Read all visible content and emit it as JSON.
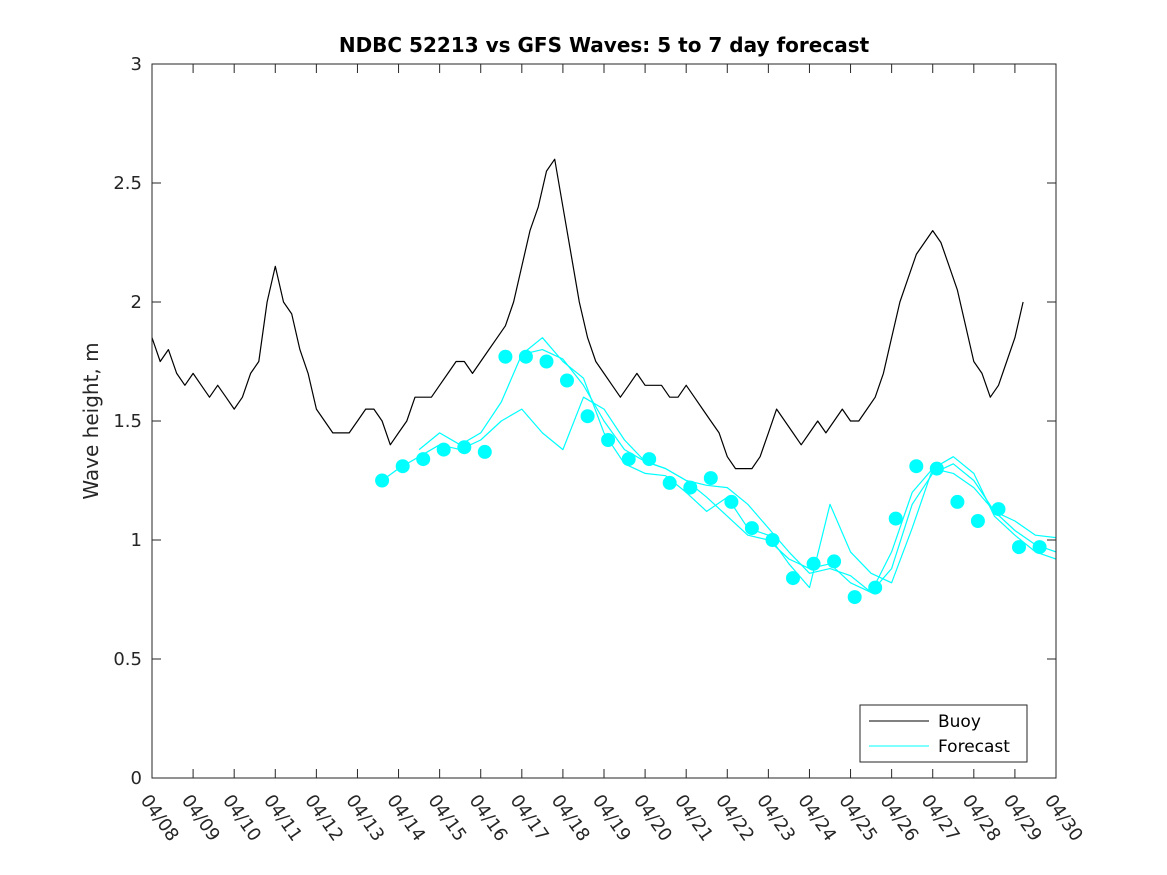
{
  "chart_data": {
    "type": "line",
    "title": "NDBC 52213 vs GFS Waves: 5 to 7 day forecast",
    "xlabel": "",
    "ylabel": "Wave height, m",
    "ylim": [
      0,
      3
    ],
    "yticks": [
      "0",
      "0.5",
      "1",
      "1.5",
      "2",
      "2.5",
      "3"
    ],
    "xlim": [
      0,
      22
    ],
    "xticks": [
      "04/08",
      "04/09",
      "04/10",
      "04/11",
      "04/12",
      "04/13",
      "04/14",
      "04/15",
      "04/16",
      "04/17",
      "04/18",
      "04/19",
      "04/20",
      "04/21",
      "04/22",
      "04/23",
      "04/24",
      "04/25",
      "04/26",
      "04/27",
      "04/28",
      "04/29",
      "04/30"
    ],
    "x_units": "days since 04/08 00:00",
    "grid": false,
    "legend": {
      "location": "bottom-right",
      "entries": [
        "Buoy",
        "Forecast"
      ]
    },
    "colors": {
      "buoy": "#000000",
      "forecast": "#00ffff"
    },
    "series": [
      {
        "name": "Buoy",
        "style": "line",
        "x": [
          0.0,
          0.2,
          0.4,
          0.6,
          0.8,
          1.0,
          1.2,
          1.4,
          1.6,
          1.8,
          2.0,
          2.2,
          2.4,
          2.6,
          2.8,
          3.0,
          3.2,
          3.4,
          3.6,
          3.8,
          4.0,
          4.2,
          4.4,
          4.6,
          4.8,
          5.0,
          5.2,
          5.4,
          5.6,
          5.8,
          6.0,
          6.2,
          6.4,
          6.6,
          6.8,
          7.0,
          7.2,
          7.4,
          7.6,
          7.8,
          8.0,
          8.2,
          8.4,
          8.6,
          8.8,
          9.0,
          9.2,
          9.4,
          9.6,
          9.8,
          10.0,
          10.2,
          10.4,
          10.6,
          10.8,
          11.0,
          11.2,
          11.4,
          11.6,
          11.8,
          12.0,
          12.2,
          12.4,
          12.6,
          12.8,
          13.0,
          13.2,
          13.4,
          13.6,
          13.8,
          14.0,
          14.2,
          14.4,
          14.6,
          14.8,
          15.0,
          15.2,
          15.4,
          15.6,
          15.8,
          16.0,
          16.2,
          16.4,
          16.6,
          16.8,
          17.0,
          17.2,
          17.4,
          17.6,
          17.8,
          18.0,
          18.2,
          18.4,
          18.6,
          18.8,
          19.0,
          19.2,
          19.4,
          19.6,
          19.8,
          20.0,
          20.2,
          20.4,
          20.6,
          20.8,
          21.0,
          21.2
        ],
        "y": [
          1.85,
          1.75,
          1.8,
          1.7,
          1.65,
          1.7,
          1.65,
          1.6,
          1.65,
          1.6,
          1.55,
          1.6,
          1.7,
          1.75,
          2.0,
          2.15,
          2.0,
          1.95,
          1.8,
          1.7,
          1.55,
          1.5,
          1.45,
          1.45,
          1.45,
          1.5,
          1.55,
          1.55,
          1.5,
          1.4,
          1.45,
          1.5,
          1.6,
          1.6,
          1.6,
          1.65,
          1.7,
          1.75,
          1.75,
          1.7,
          1.75,
          1.8,
          1.85,
          1.9,
          2.0,
          2.15,
          2.3,
          2.4,
          2.55,
          2.6,
          2.4,
          2.2,
          2.0,
          1.85,
          1.75,
          1.7,
          1.65,
          1.6,
          1.65,
          1.7,
          1.65,
          1.65,
          1.65,
          1.6,
          1.6,
          1.65,
          1.6,
          1.55,
          1.5,
          1.45,
          1.35,
          1.3,
          1.3,
          1.3,
          1.35,
          1.45,
          1.55,
          1.5,
          1.45,
          1.4,
          1.45,
          1.5,
          1.45,
          1.5,
          1.55,
          1.5,
          1.5,
          1.55,
          1.6,
          1.7,
          1.85,
          2.0,
          2.1,
          2.2,
          2.25,
          2.3,
          2.25,
          2.15,
          2.05,
          1.9,
          1.75,
          1.7,
          1.6,
          1.65,
          1.75,
          1.85,
          2.0
        ]
      },
      {
        "name": "Forecast",
        "style": "line",
        "x": [
          5.6,
          6.0,
          6.5,
          7.0,
          7.5,
          8.0,
          8.5,
          9.0,
          9.5,
          10.0,
          10.5,
          11.0,
          11.5,
          12.0,
          12.5,
          13.0,
          13.5,
          14.0,
          14.5,
          15.0,
          15.5,
          16.0,
          16.5,
          17.0,
          17.5,
          18.0,
          18.5,
          19.0,
          19.5,
          20.0,
          20.5,
          21.0,
          21.5,
          22.0
        ],
        "y": [
          1.25,
          1.3,
          1.35,
          1.4,
          1.38,
          1.42,
          1.5,
          1.55,
          1.45,
          1.38,
          1.6,
          1.55,
          1.42,
          1.33,
          1.3,
          1.25,
          1.23,
          1.22,
          1.15,
          1.05,
          0.95,
          0.86,
          0.88,
          0.85,
          0.78,
          0.88,
          1.15,
          1.28,
          1.32,
          1.25,
          1.12,
          1.04,
          0.98,
          0.95
        ]
      },
      {
        "name": "Forecast",
        "style": "line",
        "x": [
          6.5,
          7.0,
          7.5,
          8.0,
          8.5,
          9.0,
          9.5,
          10.0,
          10.5,
          11.0,
          11.5,
          12.0,
          12.5,
          13.0,
          13.5,
          14.0,
          14.5,
          15.0,
          15.5,
          16.0,
          16.5,
          17.0,
          17.5,
          18.0,
          18.5,
          19.0,
          19.5,
          20.0,
          20.5,
          21.0,
          21.5,
          22.0
        ],
        "y": [
          1.38,
          1.45,
          1.4,
          1.45,
          1.58,
          1.78,
          1.85,
          1.75,
          1.68,
          1.45,
          1.32,
          1.28,
          1.27,
          1.2,
          1.12,
          1.18,
          1.05,
          1.02,
          0.9,
          0.8,
          1.15,
          0.95,
          0.86,
          0.82,
          1.05,
          1.3,
          1.35,
          1.28,
          1.1,
          1.02,
          0.95,
          0.92
        ]
      },
      {
        "name": "Forecast",
        "style": "line",
        "x": [
          9.0,
          9.5,
          10.0,
          10.5,
          11.0,
          11.5,
          12.0,
          12.5,
          13.0,
          13.5,
          14.0,
          14.5,
          15.0,
          15.5,
          16.0,
          16.5,
          17.0,
          17.5,
          18.0,
          18.5,
          19.0,
          19.5,
          20.0,
          20.5,
          21.0,
          21.5,
          22.0
        ],
        "y": [
          1.78,
          1.8,
          1.76,
          1.65,
          1.5,
          1.38,
          1.33,
          1.3,
          1.25,
          1.18,
          1.1,
          1.02,
          1.0,
          0.92,
          0.88,
          0.9,
          0.82,
          0.78,
          0.95,
          1.2,
          1.3,
          1.28,
          1.22,
          1.12,
          1.08,
          1.02,
          1.01
        ]
      },
      {
        "name": "Forecast",
        "style": "markers",
        "x": [
          5.6,
          6.1,
          6.6,
          7.1,
          7.6,
          8.1,
          8.6,
          9.1,
          9.6,
          10.1,
          10.6,
          11.1,
          11.6,
          12.1,
          12.6,
          13.1,
          13.6,
          14.1,
          14.6,
          15.1,
          15.6,
          16.1,
          16.6,
          17.1,
          17.6,
          18.1,
          18.6,
          19.1,
          19.6,
          20.1,
          20.6,
          21.1,
          21.6
        ],
        "y": [
          1.25,
          1.31,
          1.34,
          1.38,
          1.39,
          1.37,
          1.77,
          1.77,
          1.75,
          1.67,
          1.52,
          1.42,
          1.34,
          1.34,
          1.24,
          1.22,
          1.26,
          1.16,
          1.05,
          1.0,
          0.84,
          0.9,
          0.91,
          0.76,
          0.8,
          1.09,
          1.31,
          1.3,
          1.16,
          1.08,
          1.13,
          0.97,
          0.97
        ]
      }
    ]
  }
}
